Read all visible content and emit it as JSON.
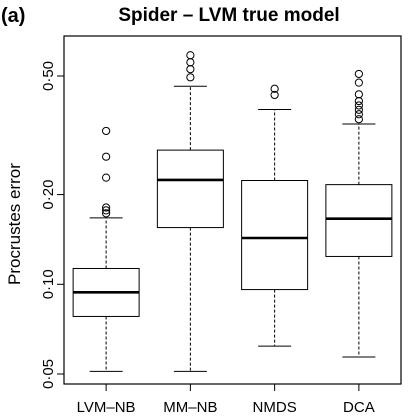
{
  "panel_label": "(a)",
  "chart_data": {
    "type": "boxplot",
    "title": "Spider – LVM true model",
    "ylabel": "Procrustes error",
    "xlabel": "",
    "yscale": "log",
    "ylim": [
      0.048,
      0.63
    ],
    "yticks": [
      {
        "value": 0.05,
        "label": "0·05"
      },
      {
        "value": 0.1,
        "label": "0·10"
      },
      {
        "value": 0.2,
        "label": "0·20"
      },
      {
        "value": 0.5,
        "label": "0·50"
      }
    ],
    "categories": [
      "LVM–NB",
      "MM–NB",
      "NMDS",
      "DCA"
    ],
    "boxes": [
      {
        "whisker_low": 0.051,
        "q1": 0.078,
        "median": 0.094,
        "q3": 0.113,
        "whisker_high": 0.167,
        "outliers": [
          0.173,
          0.177,
          0.181,
          0.228,
          0.268,
          0.327
        ]
      },
      {
        "whisker_low": 0.051,
        "q1": 0.155,
        "median": 0.224,
        "q3": 0.282,
        "whisker_high": 0.462,
        "outliers": [
          0.495,
          0.527,
          0.556,
          0.587
        ]
      },
      {
        "whisker_low": 0.062,
        "q1": 0.096,
        "median": 0.143,
        "q3": 0.223,
        "whisker_high": 0.386,
        "outliers": [
          0.432,
          0.453
        ]
      },
      {
        "whisker_low": 0.057,
        "q1": 0.124,
        "median": 0.166,
        "q3": 0.216,
        "whisker_high": 0.345,
        "outliers": [
          0.358,
          0.372,
          0.385,
          0.398,
          0.412,
          0.434,
          0.475,
          0.508
        ]
      }
    ]
  }
}
